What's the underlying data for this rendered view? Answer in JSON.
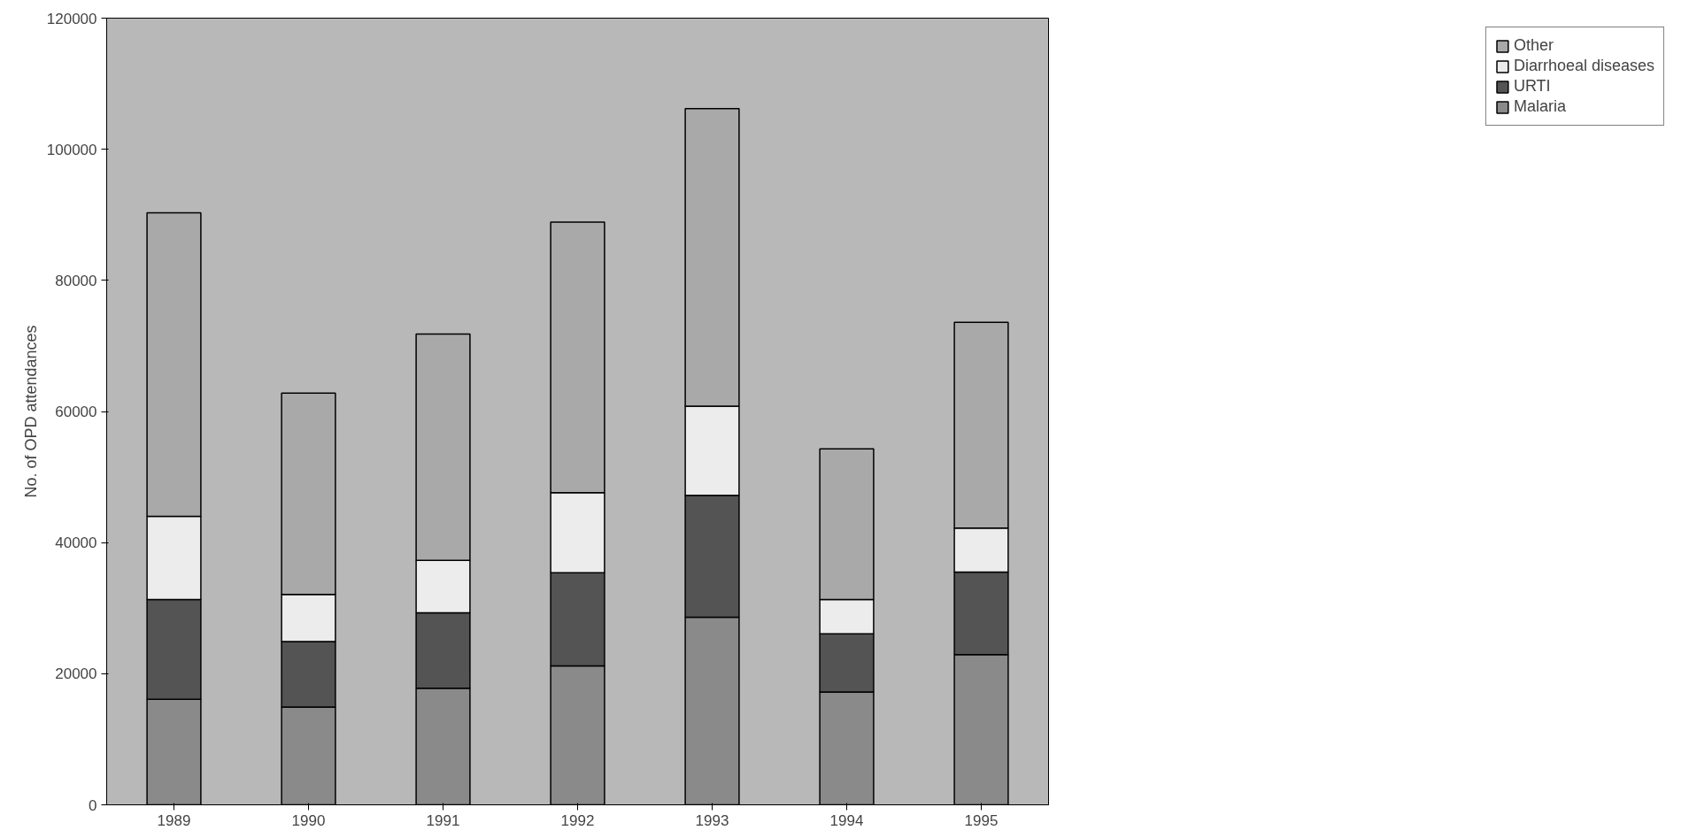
{
  "chart_data": {
    "type": "bar",
    "stacked": true,
    "ylabel": "No. of OPD attendances",
    "categories": [
      "1989",
      "1990",
      "1991",
      "1992",
      "1993",
      "1994",
      "1995"
    ],
    "series": [
      {
        "name": "Malaria",
        "color": "#8a8a8a",
        "values": [
          16100,
          14900,
          17800,
          21200,
          28600,
          17200,
          22900
        ]
      },
      {
        "name": "URTI",
        "color": "#545454",
        "values": [
          15200,
          10000,
          11500,
          14200,
          18600,
          8900,
          12600
        ]
      },
      {
        "name": "Diarrhoeal diseases",
        "color": "#ececec",
        "values": [
          12700,
          7200,
          8000,
          12200,
          13600,
          5200,
          6700
        ]
      },
      {
        "name": "Other",
        "color": "#a9a9a9",
        "values": [
          46300,
          30700,
          34500,
          41300,
          45400,
          23000,
          31400
        ]
      }
    ],
    "ylim": [
      0,
      120000
    ],
    "yticks": [
      0,
      20000,
      40000,
      60000,
      80000,
      100000,
      120000
    ],
    "grid": false,
    "legend": "right"
  }
}
